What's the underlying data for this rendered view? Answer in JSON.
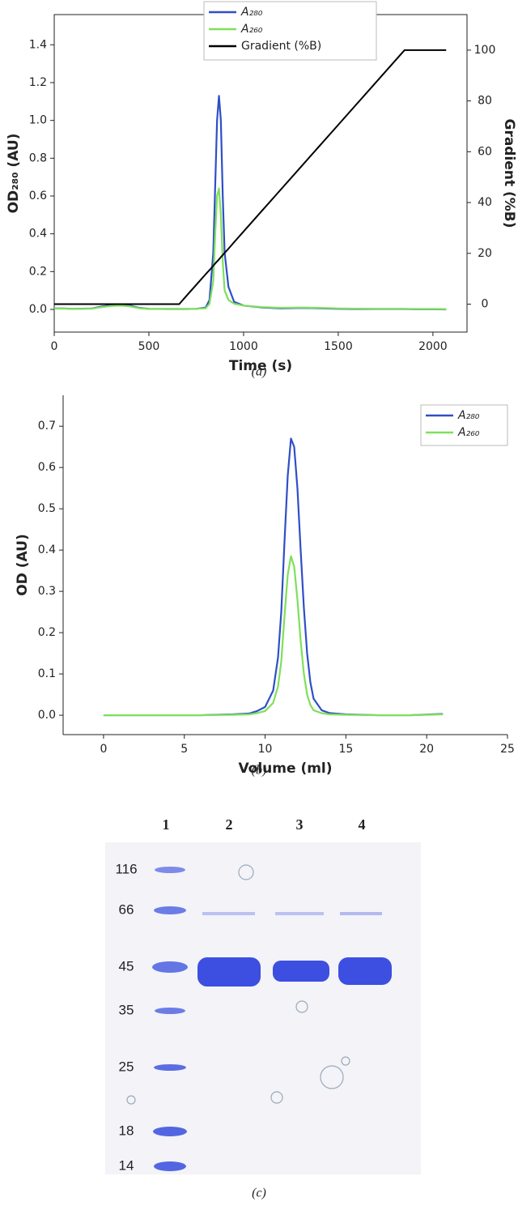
{
  "chart_data": [
    {
      "type": "line",
      "caption": "(a)",
      "x_label": "Time (s)",
      "y_label": "OD₂₈₀ (AU)",
      "y2_label": "Gradient (%B)",
      "x": [
        0,
        50,
        100,
        200,
        250,
        300,
        350,
        400,
        450,
        500,
        600,
        660,
        700,
        750,
        800,
        820,
        840,
        850,
        860,
        870,
        880,
        890,
        900,
        920,
        950,
        1000,
        1100,
        1200,
        1300,
        1400,
        1500,
        1600,
        1700,
        1800,
        1850,
        1900,
        2000,
        2070
      ],
      "series": [
        {
          "name": "A₂₈₀",
          "color": "#2f4fc6",
          "values": [
            0.005,
            0.005,
            0.003,
            0.005,
            0.015,
            0.022,
            0.025,
            0.02,
            0.008,
            0.003,
            0.002,
            0.002,
            0.002,
            0.003,
            0.01,
            0.05,
            0.3,
            0.65,
            1.0,
            1.13,
            1.0,
            0.6,
            0.3,
            0.12,
            0.04,
            0.02,
            0.01,
            0.005,
            0.008,
            0.006,
            0.003,
            0.002,
            0.002,
            0.002,
            0.002,
            0.001,
            0.001,
            0.0
          ]
        },
        {
          "name": "A₂₆₀",
          "color": "#7ee05a",
          "values": [
            0.004,
            0.004,
            0.002,
            0.004,
            0.012,
            0.018,
            0.02,
            0.016,
            0.006,
            0.002,
            0.002,
            0.002,
            0.002,
            0.003,
            0.006,
            0.03,
            0.15,
            0.4,
            0.6,
            0.64,
            0.5,
            0.25,
            0.1,
            0.05,
            0.03,
            0.02,
            0.012,
            0.008,
            0.01,
            0.008,
            0.005,
            0.004,
            0.003,
            0.003,
            0.003,
            0.002,
            0.002,
            0.001
          ]
        },
        {
          "name": "Gradient (%B)",
          "color": "#000000",
          "axis": "y2",
          "values": [
            0,
            0,
            0,
            0,
            0,
            0,
            0,
            0,
            0,
            0,
            0,
            0,
            3.4,
            7.6,
            11.8,
            13.4,
            15.1,
            16.0,
            16.8,
            17.6,
            18.5,
            19.3,
            20.2,
            21.8,
            24.4,
            28.6,
            37.0,
            45.4,
            53.8,
            62.2,
            70.6,
            79.0,
            87.4,
            95.8,
            100,
            100,
            100,
            100
          ]
        }
      ],
      "xlim": [
        0,
        2180
      ],
      "xticks": [
        0,
        500,
        1000,
        1500,
        2000
      ],
      "ylim": [
        -0.12,
        1.56
      ],
      "yticks": [
        {
          "value": 0,
          "label": "0.0"
        },
        0.2,
        0.4,
        0.6,
        0.8,
        {
          "value": 1,
          "label": "1.0"
        },
        1.2,
        1.4
      ],
      "y2lim": [
        -11,
        114
      ],
      "y2ticks": [
        0,
        20,
        40,
        60,
        80,
        100
      ],
      "legend": "top-center"
    },
    {
      "type": "line",
      "caption": "(b)",
      "x_label": "Volume (ml)",
      "y_label": "OD (AU)",
      "x": [
        0,
        2,
        4,
        6,
        8,
        9,
        9.5,
        10,
        10.5,
        10.8,
        11,
        11.2,
        11.4,
        11.6,
        11.8,
        12,
        12.2,
        12.4,
        12.6,
        12.8,
        13,
        13.5,
        14,
        15,
        17,
        19,
        21
      ],
      "series": [
        {
          "name": "A₂₈₀",
          "color": "#2f4fc6",
          "values": [
            0,
            0,
            0,
            0,
            0.002,
            0.004,
            0.01,
            0.02,
            0.06,
            0.14,
            0.25,
            0.42,
            0.58,
            0.67,
            0.65,
            0.55,
            0.4,
            0.26,
            0.15,
            0.08,
            0.04,
            0.012,
            0.005,
            0.002,
            0,
            0,
            0.003
          ]
        },
        {
          "name": "A₂₆₀",
          "color": "#7ee05a",
          "values": [
            0,
            0,
            0,
            0,
            0.001,
            0.002,
            0.005,
            0.01,
            0.03,
            0.07,
            0.13,
            0.24,
            0.34,
            0.385,
            0.36,
            0.28,
            0.18,
            0.1,
            0.05,
            0.025,
            0.012,
            0.005,
            0.002,
            0.001,
            0,
            0,
            0.002
          ]
        }
      ],
      "xlim": [
        -2.5,
        25
      ],
      "xticks": [
        0,
        5,
        10,
        15,
        20,
        25
      ],
      "ylim": [
        -0.047,
        0.775
      ],
      "yticks": [
        {
          "value": 0,
          "label": "0.0"
        },
        0.1,
        0.2,
        0.3,
        0.4,
        0.5,
        0.6,
        0.7
      ],
      "legend": "top-right"
    }
  ],
  "gel": {
    "caption": "(c)",
    "lanes": [
      "1",
      "2",
      "3",
      "4"
    ],
    "markers": [
      "116",
      "66",
      "45",
      "35",
      "25",
      "18",
      "14"
    ]
  }
}
